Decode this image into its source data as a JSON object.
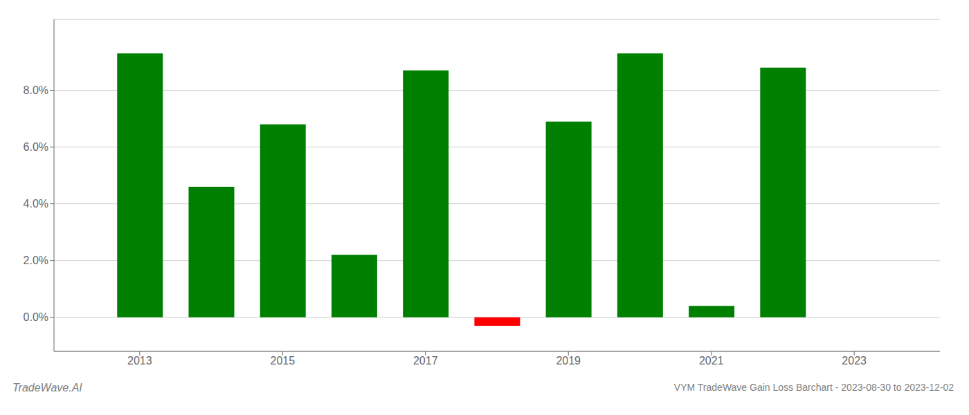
{
  "chart_data": {
    "type": "bar",
    "x": [
      2013,
      2014,
      2015,
      2016,
      2017,
      2018,
      2019,
      2020,
      2021,
      2022
    ],
    "values": [
      0.093,
      0.046,
      0.068,
      0.022,
      0.087,
      -0.003,
      0.069,
      0.093,
      0.004,
      0.088
    ],
    "colors": [
      "#008000",
      "#008000",
      "#008000",
      "#008000",
      "#008000",
      "#ff0000",
      "#008000",
      "#008000",
      "#008000",
      "#008000"
    ],
    "xlim": [
      2011.8,
      2024.2
    ],
    "xticks": [
      2013,
      2015,
      2017,
      2019,
      2021,
      2023
    ],
    "ylim": [
      -0.012,
      0.105
    ],
    "yticks": [
      {
        "value": 0.0,
        "label": "0.0%"
      },
      {
        "value": 0.02,
        "label": "2.0%"
      },
      {
        "value": 0.04,
        "label": "4.0%"
      },
      {
        "value": 0.06,
        "label": "6.0%"
      },
      {
        "value": 0.08,
        "label": "8.0%"
      }
    ],
    "grid": true,
    "annotations": [
      "TradeWave.AI",
      "VYM TradeWave Gain Loss Barchart - 2023-08-30 to 2023-12-02"
    ]
  }
}
